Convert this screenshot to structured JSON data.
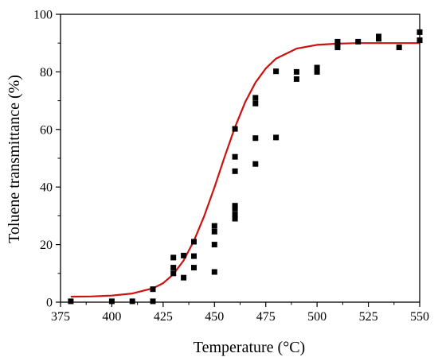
{
  "chart_data": {
    "type": "scatter",
    "title": "",
    "xlabel": "Temperature (°C)",
    "ylabel": "Toluene transmittance (%)",
    "xlim": [
      375,
      550
    ],
    "ylim": [
      0,
      100
    ],
    "xticks": [
      375,
      400,
      425,
      450,
      475,
      500,
      525,
      550
    ],
    "yticks": [
      0,
      20,
      40,
      60,
      80,
      100
    ],
    "grid": false,
    "legend": "none",
    "series": [
      {
        "type": "scatter",
        "marker": "square",
        "color": "#000000",
        "points": [
          [
            380,
            0.3
          ],
          [
            400,
            0.3
          ],
          [
            410,
            0.3
          ],
          [
            420,
            0.3
          ],
          [
            420,
            4.5
          ],
          [
            430,
            10.0
          ],
          [
            430,
            12.0
          ],
          [
            430,
            15.5
          ],
          [
            435,
            8.5
          ],
          [
            435,
            16.2
          ],
          [
            440,
            12.0
          ],
          [
            440,
            16.0
          ],
          [
            440,
            21.0
          ],
          [
            450,
            10.5
          ],
          [
            450,
            20.0
          ],
          [
            450,
            24.5
          ],
          [
            450,
            26.5
          ],
          [
            460,
            29.0
          ],
          [
            460,
            30.5
          ],
          [
            460,
            32.5
          ],
          [
            460,
            33.5
          ],
          [
            460,
            45.5
          ],
          [
            460,
            50.5
          ],
          [
            460,
            60.2
          ],
          [
            470,
            48.0
          ],
          [
            470,
            57.0
          ],
          [
            470,
            69.0
          ],
          [
            470,
            71.0
          ],
          [
            480,
            57.2
          ],
          [
            480,
            80.2
          ],
          [
            490,
            77.5
          ],
          [
            490,
            80.0
          ],
          [
            500,
            80.0
          ],
          [
            500,
            81.5
          ],
          [
            510,
            88.5
          ],
          [
            510,
            89.5
          ],
          [
            510,
            90.5
          ],
          [
            520,
            90.5
          ],
          [
            530,
            91.5
          ],
          [
            530,
            92.3
          ],
          [
            540,
            88.5
          ],
          [
            550,
            91.0
          ],
          [
            550,
            93.8
          ]
        ]
      },
      {
        "type": "line",
        "color": "#cc1111",
        "points": [
          [
            380,
            1.9
          ],
          [
            390,
            2.0
          ],
          [
            400,
            2.3
          ],
          [
            410,
            3.0
          ],
          [
            420,
            4.8
          ],
          [
            425,
            6.6
          ],
          [
            430,
            9.7
          ],
          [
            435,
            14.5
          ],
          [
            440,
            21.3
          ],
          [
            445,
            29.9
          ],
          [
            450,
            39.9
          ],
          [
            455,
            50.6
          ],
          [
            460,
            60.8
          ],
          [
            465,
            69.5
          ],
          [
            470,
            76.3
          ],
          [
            475,
            81.2
          ],
          [
            480,
            84.6
          ],
          [
            490,
            88.1
          ],
          [
            500,
            89.4
          ],
          [
            510,
            89.8
          ],
          [
            520,
            90.0
          ],
          [
            530,
            90.0
          ],
          [
            540,
            90.0
          ],
          [
            550,
            90.0
          ]
        ]
      }
    ]
  }
}
